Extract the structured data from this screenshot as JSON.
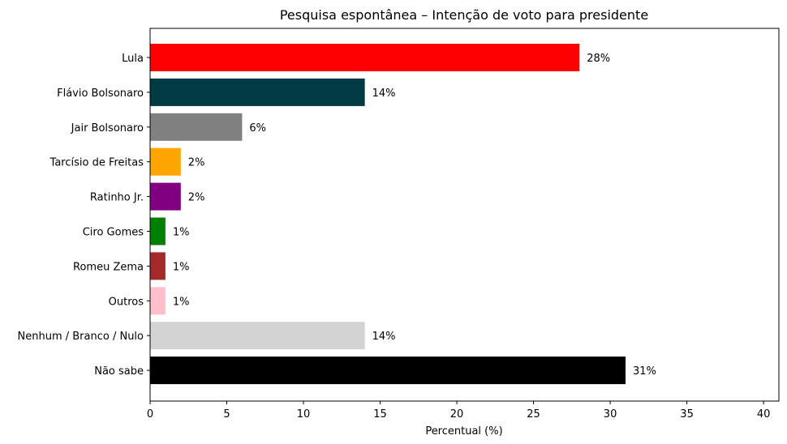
{
  "chart_data": {
    "type": "bar",
    "orientation": "horizontal",
    "title": "Pesquisa espontânea – Intenção de voto para presidente",
    "xlabel": "Percentual (%)",
    "ylabel": "",
    "xlim": [
      0,
      41
    ],
    "xticks": [
      0,
      5,
      10,
      15,
      20,
      25,
      30,
      35,
      40
    ],
    "grid": false,
    "categories": [
      "Lula",
      "Flávio Bolsonaro",
      "Jair Bolsonaro",
      "Tarcísio de Freitas",
      "Ratinho Jr.",
      "Ciro Gomes",
      "Romeu Zema",
      "Outros",
      "Nenhum / Branco / Nulo",
      "Não sabe"
    ],
    "values": [
      28,
      14,
      6,
      2,
      2,
      1,
      1,
      1,
      14,
      31
    ],
    "data_labels": [
      "28%",
      "14%",
      "6%",
      "2%",
      "2%",
      "1%",
      "1%",
      "1%",
      "14%",
      "31%"
    ],
    "colors": [
      "#ff0000",
      "#003b44",
      "#808080",
      "#ffa500",
      "#800080",
      "#008000",
      "#a52a2a",
      "#ffc0cb",
      "#d3d3d3",
      "#000000"
    ]
  }
}
